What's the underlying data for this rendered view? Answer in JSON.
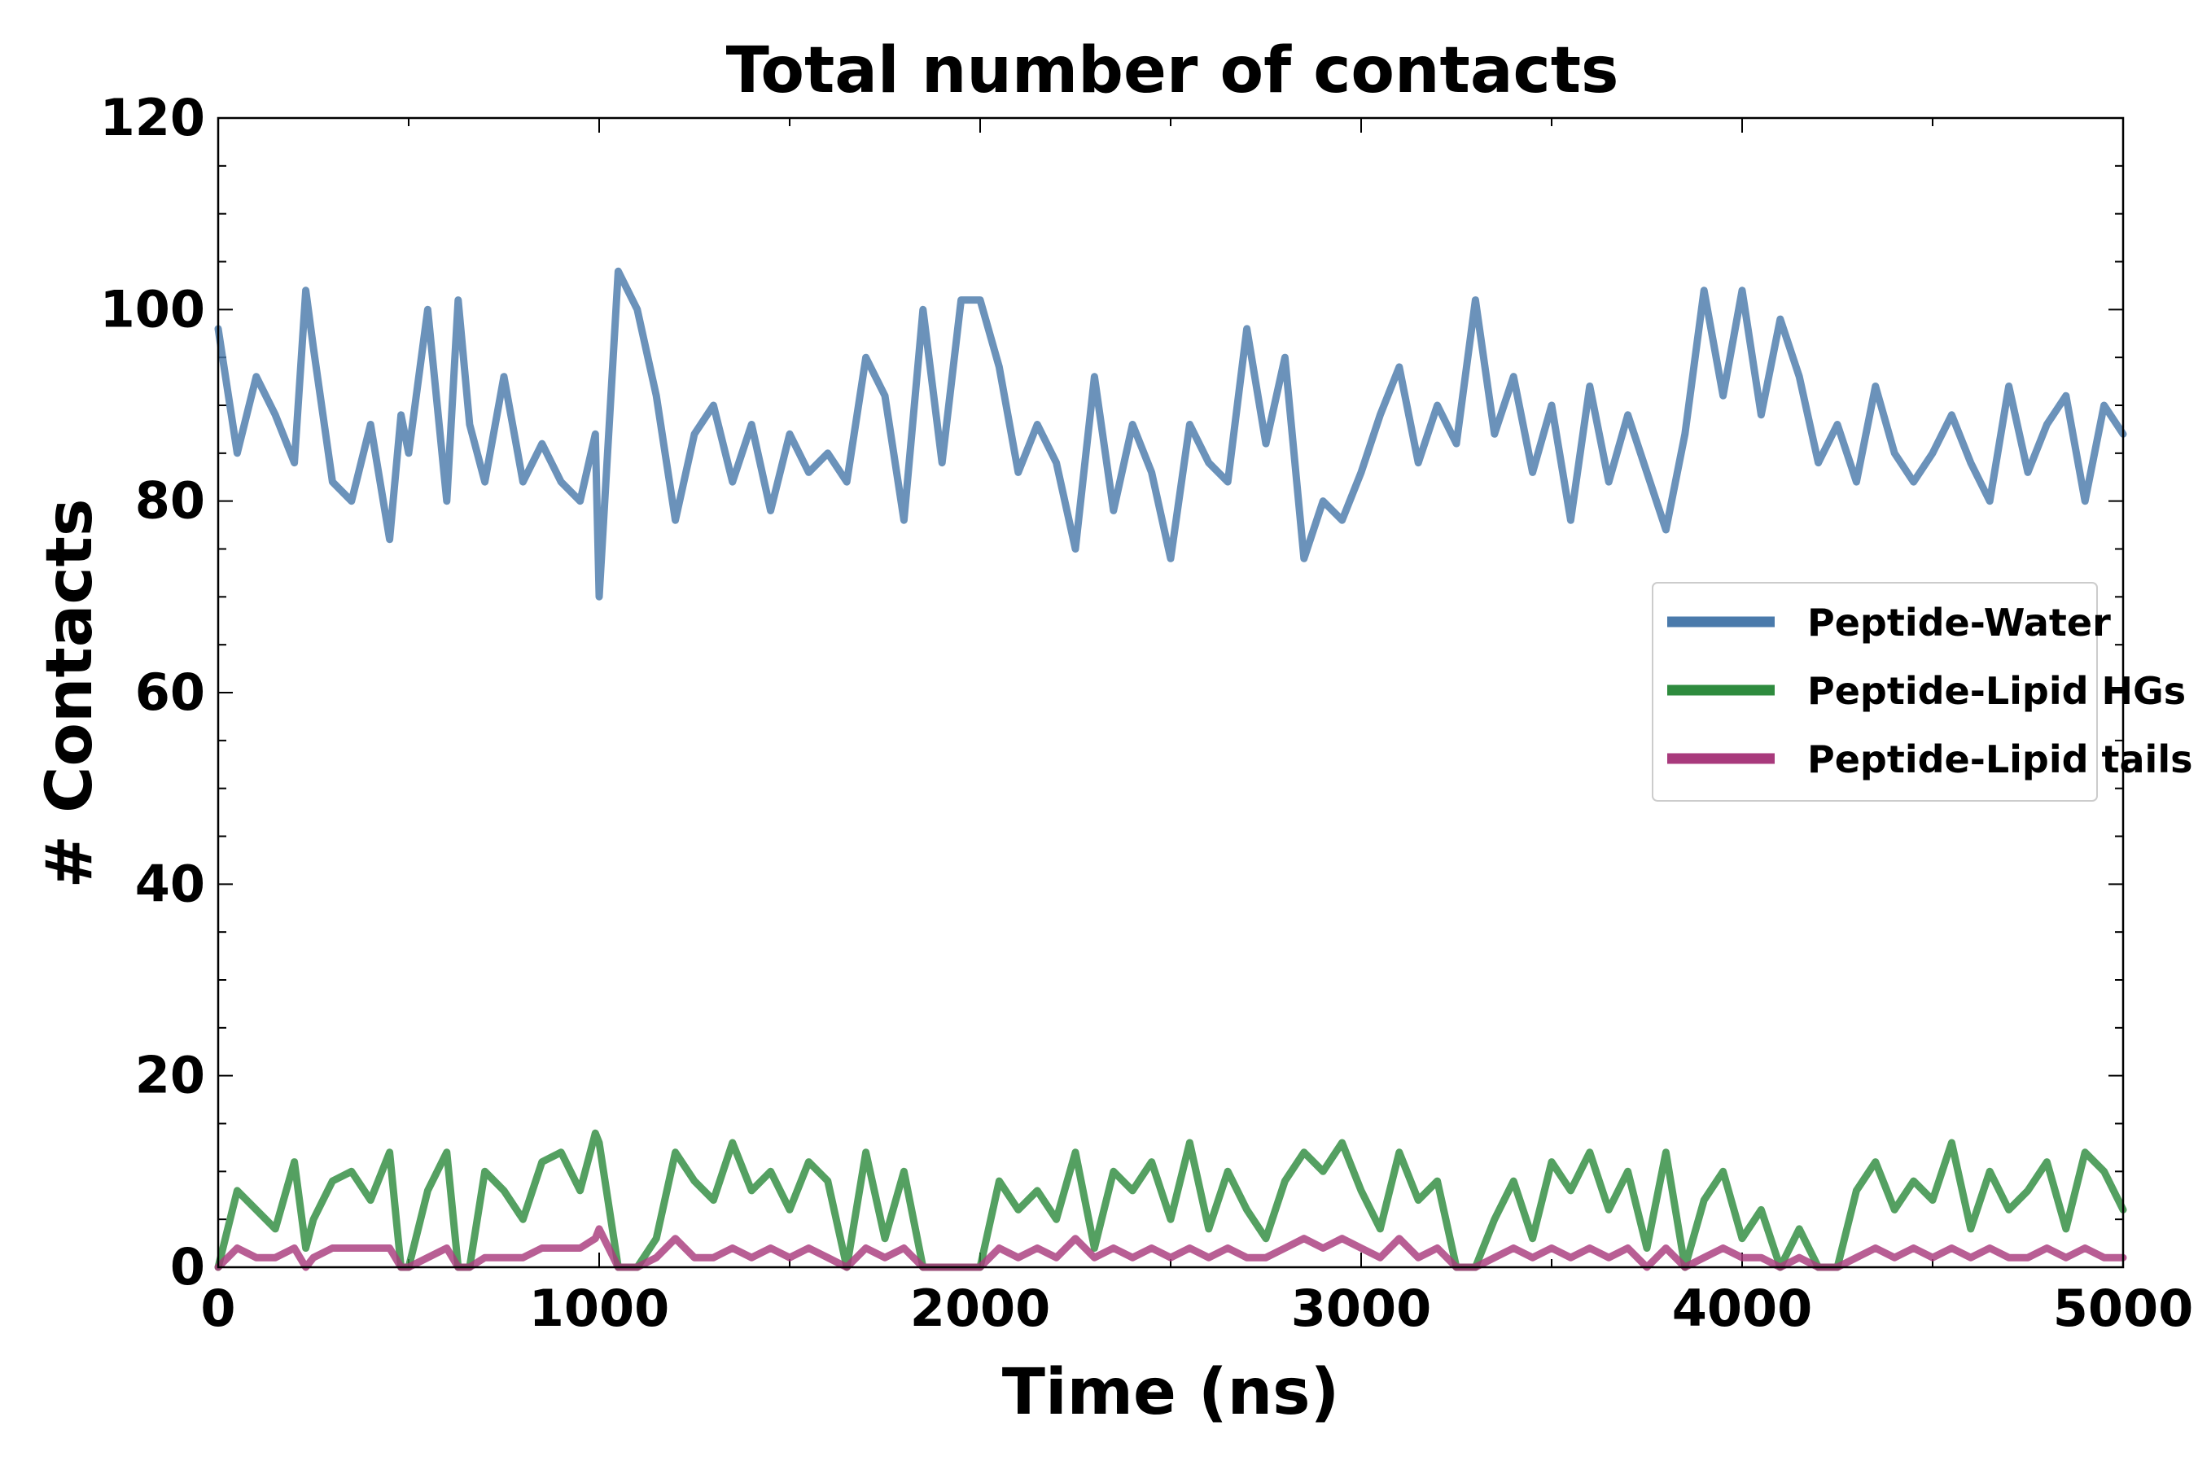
{
  "chart_data": {
    "type": "line",
    "title": "Total number of contacts",
    "xlabel": "Time (ns)",
    "ylabel": "# Contacts",
    "xlim": [
      0,
      5000
    ],
    "ylim": [
      0,
      120
    ],
    "xticks": [
      0,
      1000,
      2000,
      3000,
      4000,
      5000
    ],
    "yticks": [
      0,
      20,
      40,
      60,
      80,
      100,
      120
    ],
    "grid": false,
    "legend_position": "center-right",
    "series": [
      {
        "name": "Peptide-Water",
        "color": "#4a7aab",
        "x": [
          0,
          50,
          100,
          150,
          200,
          230,
          250,
          300,
          350,
          400,
          450,
          480,
          500,
          550,
          600,
          630,
          660,
          700,
          750,
          800,
          850,
          900,
          950,
          990,
          1000,
          1050,
          1100,
          1150,
          1200,
          1250,
          1300,
          1350,
          1400,
          1450,
          1500,
          1550,
          1600,
          1650,
          1700,
          1750,
          1800,
          1850,
          1900,
          1950,
          2000,
          2050,
          2100,
          2150,
          2200,
          2250,
          2300,
          2350,
          2400,
          2450,
          2500,
          2550,
          2600,
          2650,
          2700,
          2750,
          2800,
          2850,
          2900,
          2950,
          3000,
          3050,
          3100,
          3150,
          3200,
          3250,
          3300,
          3350,
          3400,
          3450,
          3500,
          3550,
          3600,
          3650,
          3700,
          3750,
          3800,
          3850,
          3900,
          3950,
          4000,
          4050,
          4100,
          4150,
          4200,
          4250,
          4300,
          4350,
          4400,
          4450,
          4500,
          4550,
          4600,
          4650,
          4700,
          4750,
          4800,
          4850,
          4900,
          4950,
          5000
        ],
        "values": [
          98,
          85,
          93,
          89,
          84,
          102,
          96,
          82,
          80,
          88,
          76,
          89,
          85,
          100,
          80,
          101,
          88,
          82,
          93,
          82,
          86,
          82,
          80,
          87,
          70,
          104,
          100,
          91,
          78,
          87,
          90,
          82,
          88,
          79,
          87,
          83,
          85,
          82,
          95,
          91,
          78,
          100,
          84,
          101,
          101,
          94,
          83,
          88,
          84,
          75,
          93,
          79,
          88,
          83,
          74,
          88,
          84,
          82,
          98,
          86,
          95,
          74,
          80,
          78,
          83,
          89,
          94,
          84,
          90,
          86,
          101,
          87,
          93,
          83,
          90,
          78,
          92,
          82,
          89,
          83,
          77,
          87,
          102,
          91,
          102,
          89,
          99,
          93,
          84,
          88,
          82,
          92,
          85,
          82,
          85,
          89,
          84,
          80,
          92,
          83,
          88,
          91,
          80,
          90,
          87
        ]
      },
      {
        "name": "Peptide-Lipid HGs",
        "color": "#2e8b3e",
        "x": [
          0,
          50,
          100,
          150,
          200,
          230,
          250,
          300,
          350,
          400,
          450,
          480,
          500,
          550,
          600,
          630,
          660,
          700,
          750,
          800,
          850,
          900,
          950,
          990,
          1000,
          1050,
          1100,
          1150,
          1200,
          1250,
          1300,
          1350,
          1400,
          1450,
          1500,
          1550,
          1600,
          1650,
          1700,
          1750,
          1800,
          1850,
          1900,
          1950,
          2000,
          2050,
          2100,
          2150,
          2200,
          2250,
          2300,
          2350,
          2400,
          2450,
          2500,
          2550,
          2600,
          2650,
          2700,
          2750,
          2800,
          2850,
          2900,
          2950,
          3000,
          3050,
          3100,
          3150,
          3200,
          3250,
          3300,
          3350,
          3400,
          3450,
          3500,
          3550,
          3600,
          3650,
          3700,
          3750,
          3800,
          3850,
          3900,
          3950,
          4000,
          4050,
          4100,
          4150,
          4200,
          4250,
          4300,
          4350,
          4400,
          4450,
          4500,
          4550,
          4600,
          4650,
          4700,
          4750,
          4800,
          4850,
          4900,
          4950,
          5000
        ],
        "values": [
          0,
          8,
          6,
          4,
          11,
          2,
          5,
          9,
          10,
          7,
          12,
          0,
          0,
          8,
          12,
          0,
          0,
          10,
          8,
          5,
          11,
          12,
          8,
          14,
          13,
          0,
          0,
          3,
          12,
          9,
          7,
          13,
          8,
          10,
          6,
          11,
          9,
          0,
          12,
          3,
          10,
          0,
          0,
          0,
          0,
          9,
          6,
          8,
          5,
          12,
          2,
          10,
          8,
          11,
          5,
          13,
          4,
          10,
          6,
          3,
          9,
          12,
          10,
          13,
          8,
          4,
          12,
          7,
          9,
          0,
          0,
          5,
          9,
          3,
          11,
          8,
          12,
          6,
          10,
          2,
          12,
          0,
          7,
          10,
          3,
          6,
          0,
          4,
          0,
          0,
          8,
          11,
          6,
          9,
          7,
          13,
          4,
          10,
          6,
          8,
          11,
          4,
          12,
          10,
          6
        ]
      },
      {
        "name": "Peptide-Lipid tails",
        "color": "#a83a7c",
        "x": [
          0,
          50,
          100,
          150,
          200,
          230,
          250,
          300,
          350,
          400,
          450,
          480,
          500,
          550,
          600,
          630,
          660,
          700,
          750,
          800,
          850,
          900,
          950,
          990,
          1000,
          1050,
          1100,
          1150,
          1200,
          1250,
          1300,
          1350,
          1400,
          1450,
          1500,
          1550,
          1600,
          1650,
          1700,
          1750,
          1800,
          1850,
          1900,
          1950,
          2000,
          2050,
          2100,
          2150,
          2200,
          2250,
          2300,
          2350,
          2400,
          2450,
          2500,
          2550,
          2600,
          2650,
          2700,
          2750,
          2800,
          2850,
          2900,
          2950,
          3000,
          3050,
          3100,
          3150,
          3200,
          3250,
          3300,
          3350,
          3400,
          3450,
          3500,
          3550,
          3600,
          3650,
          3700,
          3750,
          3800,
          3850,
          3900,
          3950,
          4000,
          4050,
          4100,
          4150,
          4200,
          4250,
          4300,
          4350,
          4400,
          4450,
          4500,
          4550,
          4600,
          4650,
          4700,
          4750,
          4800,
          4850,
          4900,
          4950,
          5000
        ],
        "values": [
          0,
          2,
          1,
          1,
          2,
          0,
          1,
          2,
          2,
          2,
          2,
          0,
          0,
          1,
          2,
          0,
          0,
          1,
          1,
          1,
          2,
          2,
          2,
          3,
          4,
          0,
          0,
          1,
          3,
          1,
          1,
          2,
          1,
          2,
          1,
          2,
          1,
          0,
          2,
          1,
          2,
          0,
          0,
          0,
          0,
          2,
          1,
          2,
          1,
          3,
          1,
          2,
          1,
          2,
          1,
          2,
          1,
          2,
          1,
          1,
          2,
          3,
          2,
          3,
          2,
          1,
          3,
          1,
          2,
          0,
          0,
          1,
          2,
          1,
          2,
          1,
          2,
          1,
          2,
          0,
          2,
          0,
          1,
          2,
          1,
          1,
          0,
          1,
          0,
          0,
          1,
          2,
          1,
          2,
          1,
          2,
          1,
          2,
          1,
          1,
          2,
          1,
          2,
          1,
          1
        ]
      }
    ]
  }
}
